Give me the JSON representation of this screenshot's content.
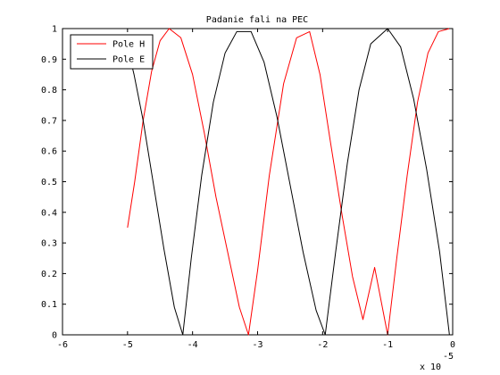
{
  "chart_data": {
    "type": "line",
    "title": "Padanie fali na PEC",
    "xlabel": "",
    "ylabel": "",
    "xlim": [
      -6,
      0
    ],
    "ylim": [
      0,
      1
    ],
    "x_ticks": [
      "-6",
      "-5",
      "-4",
      "-3",
      "-2",
      "-1",
      "0"
    ],
    "y_ticks": [
      "0",
      "0.1",
      "0.2",
      "0.3",
      "0.4",
      "0.5",
      "0.6",
      "0.7",
      "0.8",
      "0.9",
      "1"
    ],
    "x_multiplier": {
      "base": "x 10",
      "exponent": "-5"
    },
    "grid": false,
    "legend_position": "top-left",
    "series": [
      {
        "name": "Pole H",
        "color": "#ff0000",
        "x": [
          -5.0,
          -4.89,
          -4.76,
          -4.63,
          -4.5,
          -4.36,
          -4.18,
          -4.0,
          -3.82,
          -3.64,
          -3.46,
          -3.28,
          -3.14,
          -3.0,
          -2.82,
          -2.6,
          -2.4,
          -2.2,
          -2.04,
          -1.88,
          -1.7,
          -1.54,
          -1.38,
          -1.2,
          -1.0,
          -0.86,
          -0.7,
          -0.54,
          -0.38,
          -0.22,
          -0.05
        ],
        "values": [
          0.35,
          0.5,
          0.7,
          0.86,
          0.96,
          1.0,
          0.97,
          0.85,
          0.66,
          0.45,
          0.27,
          0.09,
          0.0,
          0.21,
          0.52,
          0.82,
          0.97,
          0.99,
          0.85,
          0.63,
          0.39,
          0.19,
          0.05,
          0.22,
          0.0,
          0.25,
          0.52,
          0.76,
          0.92,
          0.99,
          1.0
        ]
      },
      {
        "name": "Pole E",
        "color": "#000000",
        "x": [
          -5.0,
          -4.9,
          -4.76,
          -4.6,
          -4.44,
          -4.28,
          -4.15,
          -4.02,
          -3.86,
          -3.68,
          -3.5,
          -3.32,
          -3.1,
          -2.9,
          -2.7,
          -2.5,
          -2.3,
          -2.1,
          -1.96,
          -1.8,
          -1.62,
          -1.44,
          -1.26,
          -1.0,
          -0.8,
          -0.6,
          -0.4,
          -0.2,
          -0.05
        ],
        "values": [
          0.94,
          0.85,
          0.7,
          0.49,
          0.28,
          0.09,
          0.0,
          0.25,
          0.52,
          0.76,
          0.92,
          0.99,
          0.99,
          0.89,
          0.71,
          0.49,
          0.27,
          0.08,
          0.0,
          0.27,
          0.56,
          0.8,
          0.95,
          1.0,
          0.94,
          0.77,
          0.54,
          0.27,
          0.0
        ]
      }
    ]
  }
}
